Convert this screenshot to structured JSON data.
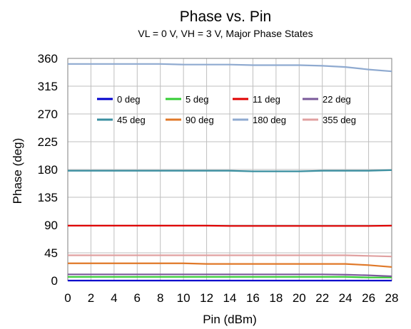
{
  "chart_data": {
    "type": "line",
    "title": "Phase vs. Pin",
    "subtitle": "VL = 0 V, VH = 3 V, Major Phase States",
    "xlabel": "Pin (dBm)",
    "ylabel": "Phase (deg)",
    "xlim": [
      0,
      28
    ],
    "ylim": [
      0,
      360
    ],
    "xticks": [
      0,
      2,
      4,
      6,
      8,
      10,
      12,
      14,
      16,
      18,
      20,
      22,
      24,
      26,
      28
    ],
    "yticks": [
      0,
      45,
      90,
      135,
      180,
      225,
      270,
      315,
      360
    ],
    "grid": true,
    "legend_position": "top",
    "x": [
      0,
      2,
      4,
      6,
      8,
      10,
      12,
      14,
      16,
      18,
      20,
      22,
      24,
      26,
      28
    ],
    "series": [
      {
        "name": "0 deg",
        "color": "#0000cc",
        "values": [
          0,
          0,
          0,
          0,
          0,
          0,
          0,
          0,
          0,
          0,
          0,
          0,
          0,
          0,
          0
        ]
      },
      {
        "name": "5 deg",
        "color": "#33cc33",
        "values": [
          6,
          6,
          6,
          6,
          6,
          6,
          6,
          6,
          6,
          6,
          6,
          6,
          6,
          5,
          5
        ]
      },
      {
        "name": "11 deg",
        "color": "#e00000",
        "values": [
          89,
          89,
          89,
          89,
          89,
          89,
          89,
          88.5,
          88.5,
          88.5,
          88.5,
          88.5,
          88.5,
          88.5,
          89
        ]
      },
      {
        "name": "22 deg",
        "color": "#7a5a9a",
        "values": [
          10,
          10,
          10,
          10,
          10,
          10,
          10,
          10,
          10,
          10,
          10,
          10,
          9.5,
          8.5,
          7
        ]
      },
      {
        "name": "45 deg",
        "color": "#3a8fa0",
        "values": [
          178,
          178,
          178,
          178,
          178,
          178,
          178,
          178,
          177,
          177,
          177,
          178,
          178,
          178,
          179
        ]
      },
      {
        "name": "90 deg",
        "color": "#e07828",
        "values": [
          28,
          28,
          28,
          28,
          28,
          28,
          27,
          27,
          27,
          27,
          27,
          27,
          27,
          25,
          22
        ]
      },
      {
        "name": "180 deg",
        "color": "#8faad0",
        "values": [
          351,
          351,
          351,
          351,
          351,
          350,
          350,
          350,
          349,
          349,
          349,
          348,
          346,
          342,
          339
        ]
      },
      {
        "name": "355 deg",
        "color": "#e0a0a0",
        "values": [
          41,
          41,
          41,
          41,
          41,
          41,
          41,
          41,
          41,
          41,
          41,
          41,
          41,
          40,
          39
        ]
      }
    ]
  }
}
